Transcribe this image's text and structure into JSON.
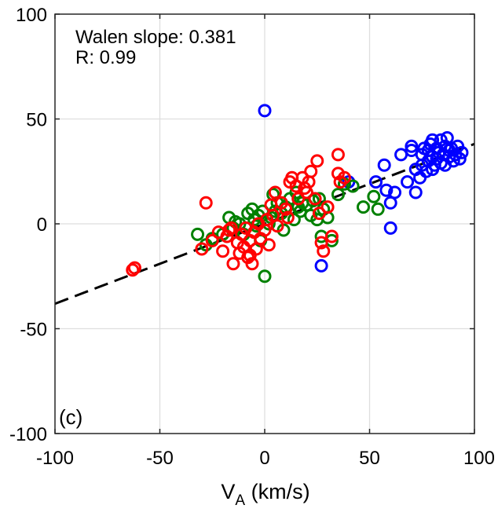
{
  "chart_data": {
    "type": "scatter",
    "panel_label": "(c)",
    "xlabel": "V",
    "xlabel_sub": "A",
    "xlabel_unit": " (km/s)",
    "ylabel": "",
    "xlim": [
      -100,
      100
    ],
    "ylim": [
      -100,
      100
    ],
    "xticks": [
      -100,
      -50,
      0,
      50,
      100
    ],
    "yticks": [
      -100,
      -50,
      0,
      50,
      100
    ],
    "grid": true,
    "annotations": [
      "Walen slope: 0.381",
      "R: 0.99"
    ],
    "fit_line": {
      "slope": 0.381,
      "intercept": 0,
      "style": "dashed",
      "color": "#000000"
    },
    "series": [
      {
        "color": "#0000ff",
        "x": [
          0,
          27,
          40,
          53,
          57,
          58,
          60,
          60,
          62,
          65,
          68,
          70,
          70,
          72,
          72,
          74,
          75,
          75,
          76,
          77,
          78,
          78,
          79,
          80,
          80,
          80,
          81,
          82,
          82,
          83,
          84,
          84,
          85,
          86,
          86,
          87,
          88,
          88,
          89,
          90,
          91,
          92,
          93,
          94
        ],
        "y": [
          54,
          -20,
          20,
          20,
          28,
          16,
          10,
          -2,
          15,
          33,
          20,
          37,
          35,
          26,
          15,
          22,
          33,
          28,
          36,
          25,
          35,
          30,
          38,
          26,
          32,
          40,
          28,
          36,
          31,
          34,
          40,
          29,
          33,
          37,
          28,
          41,
          32,
          35,
          36,
          30,
          33,
          37,
          31,
          34
        ]
      },
      {
        "color": "#008000",
        "x": [
          -32,
          -28,
          -25,
          -20,
          -17,
          -15,
          -12,
          -10,
          -8,
          -6,
          -5,
          -4,
          -3,
          -2,
          0,
          2,
          3,
          5,
          6,
          8,
          10,
          12,
          14,
          15,
          17,
          18,
          20,
          22,
          23,
          25,
          27,
          28,
          30,
          32,
          35,
          38,
          42,
          47,
          52,
          54,
          -14,
          -1,
          4,
          9,
          16,
          26
        ],
        "y": [
          -5,
          -10,
          -7,
          -5,
          3,
          -2,
          0,
          -5,
          5,
          7,
          2,
          -1,
          4,
          -8,
          -25,
          0,
          3,
          6,
          10,
          5,
          8,
          12,
          2,
          15,
          6,
          10,
          9,
          4,
          11,
          2,
          -6,
          7,
          3,
          -8,
          14,
          19,
          18,
          8,
          13,
          7,
          1,
          6,
          14,
          -3,
          8,
          12
        ]
      },
      {
        "color": "#ff0000",
        "x": [
          -63,
          -62,
          -30,
          -28,
          -25,
          -22,
          -20,
          -18,
          -16,
          -15,
          -13,
          -12,
          -11,
          -10,
          -9,
          -8,
          -7,
          -6,
          -5,
          -4,
          -3,
          -2,
          0,
          1,
          2,
          4,
          5,
          6,
          8,
          10,
          12,
          13,
          15,
          16,
          18,
          20,
          21,
          22,
          24,
          25,
          26,
          28,
          30,
          32,
          35,
          35,
          36,
          38,
          -17,
          -7,
          3,
          11,
          19,
          27
        ],
        "y": [
          -22,
          -21,
          -12,
          10,
          -8,
          -4,
          -13,
          -6,
          -2,
          -19,
          -9,
          -14,
          -5,
          -11,
          -2,
          -16,
          -8,
          -19,
          -4,
          -12,
          0,
          -7,
          -3,
          2,
          -10,
          4,
          15,
          -1,
          10,
          7,
          20,
          22,
          18,
          12,
          22,
          15,
          20,
          25,
          12,
          30,
          5,
          -13,
          8,
          -6,
          33,
          24,
          20,
          22,
          -3,
          -15,
          9,
          3,
          17,
          -9
        ]
      }
    ]
  }
}
